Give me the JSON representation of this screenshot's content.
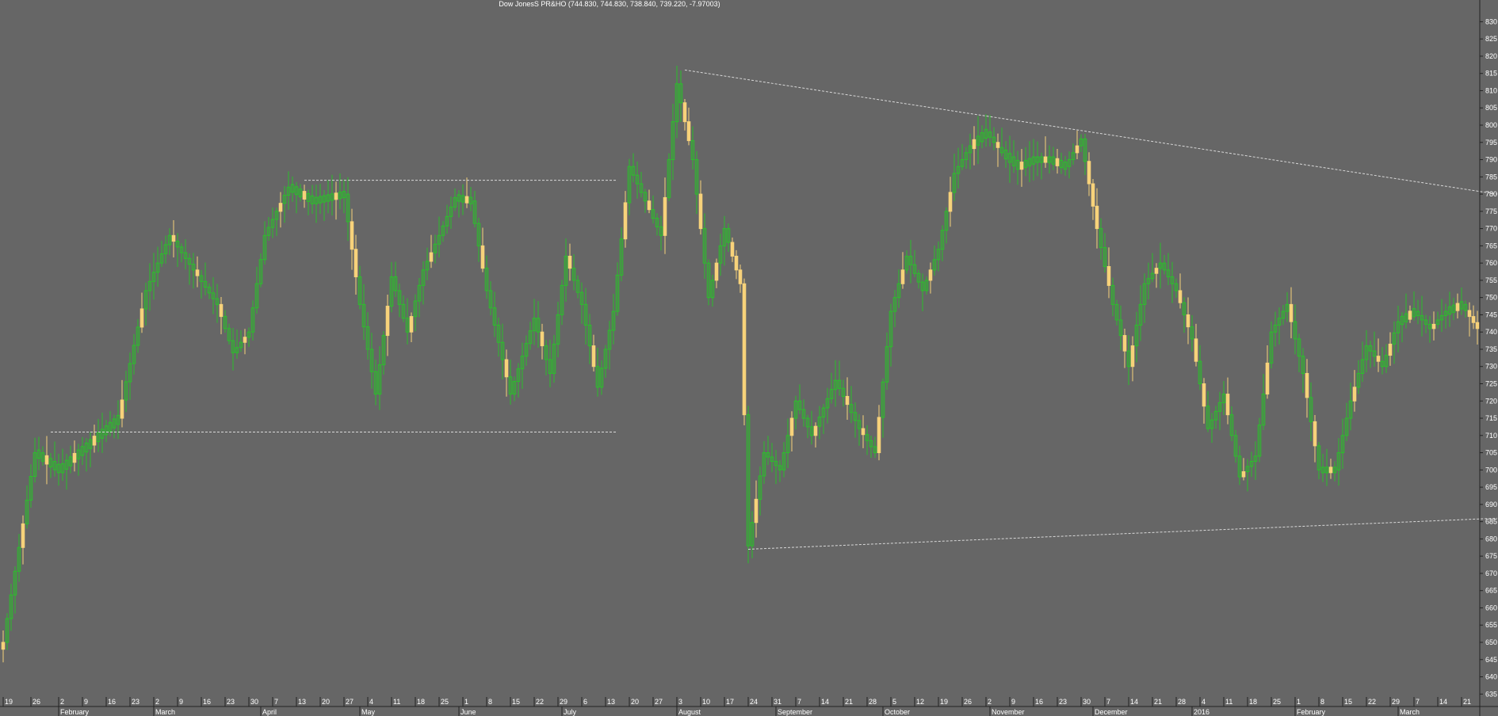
{
  "chart_data": {
    "type": "candlestick",
    "title": "Dow JonesS PR&HO (744.830, 744.830, 738.840, 739.220, -7.97003)",
    "y_axis": {
      "position": "right",
      "ylim": [
        633,
        834
      ],
      "ticks": [
        635,
        640,
        645,
        650,
        655,
        660,
        665,
        670,
        675,
        680,
        685,
        690,
        695,
        700,
        705,
        710,
        715,
        720,
        725,
        730,
        735,
        740,
        745,
        750,
        755,
        760,
        765,
        770,
        775,
        780,
        785,
        790,
        795,
        800,
        805,
        810,
        815,
        820,
        825,
        830
      ]
    },
    "x_axis": {
      "day_ticks": [
        {
          "label": "19",
          "i": 0
        },
        {
          "label": "26",
          "i": 7
        },
        {
          "label": "2",
          "i": 14
        },
        {
          "label": "9",
          "i": 20
        },
        {
          "label": "16",
          "i": 26
        },
        {
          "label": "23",
          "i": 32
        },
        {
          "label": "2",
          "i": 38
        },
        {
          "label": "9",
          "i": 44
        },
        {
          "label": "16",
          "i": 50
        },
        {
          "label": "23",
          "i": 56
        },
        {
          "label": "30",
          "i": 62
        },
        {
          "label": "7",
          "i": 68
        },
        {
          "label": "13",
          "i": 74
        },
        {
          "label": "20",
          "i": 80
        },
        {
          "label": "27",
          "i": 86
        },
        {
          "label": "4",
          "i": 92
        },
        {
          "label": "11",
          "i": 98
        },
        {
          "label": "18",
          "i": 104
        },
        {
          "label": "25",
          "i": 110
        },
        {
          "label": "1",
          "i": 116
        },
        {
          "label": "8",
          "i": 122
        },
        {
          "label": "15",
          "i": 128
        },
        {
          "label": "22",
          "i": 134
        },
        {
          "label": "29",
          "i": 140
        },
        {
          "label": "6",
          "i": 146
        },
        {
          "label": "13",
          "i": 152
        },
        {
          "label": "20",
          "i": 158
        },
        {
          "label": "27",
          "i": 164
        },
        {
          "label": "3",
          "i": 170
        },
        {
          "label": "10",
          "i": 176
        },
        {
          "label": "17",
          "i": 182
        },
        {
          "label": "24",
          "i": 188
        },
        {
          "label": "31",
          "i": 194
        },
        {
          "label": "7",
          "i": 200
        },
        {
          "label": "14",
          "i": 206
        },
        {
          "label": "21",
          "i": 212
        },
        {
          "label": "28",
          "i": 218
        },
        {
          "label": "5",
          "i": 224
        },
        {
          "label": "12",
          "i": 230
        },
        {
          "label": "19",
          "i": 236
        },
        {
          "label": "26",
          "i": 242
        },
        {
          "label": "2",
          "i": 248
        },
        {
          "label": "9",
          "i": 254
        },
        {
          "label": "16",
          "i": 260
        },
        {
          "label": "23",
          "i": 266
        },
        {
          "label": "30",
          "i": 272
        },
        {
          "label": "7",
          "i": 278
        },
        {
          "label": "14",
          "i": 284
        },
        {
          "label": "21",
          "i": 290
        },
        {
          "label": "28",
          "i": 296
        },
        {
          "label": "4",
          "i": 302
        },
        {
          "label": "11",
          "i": 308
        },
        {
          "label": "18",
          "i": 314
        },
        {
          "label": "25",
          "i": 320
        },
        {
          "label": "1",
          "i": 326
        },
        {
          "label": "8",
          "i": 332
        },
        {
          "label": "15",
          "i": 338
        },
        {
          "label": "22",
          "i": 344
        },
        {
          "label": "29",
          "i": 350
        },
        {
          "label": "7",
          "i": 356
        },
        {
          "label": "14",
          "i": 362
        },
        {
          "label": "21",
          "i": 368
        }
      ],
      "month_ticks": [
        {
          "label": "February",
          "i": 14
        },
        {
          "label": "March",
          "i": 38
        },
        {
          "label": "April",
          "i": 65
        },
        {
          "label": "May",
          "i": 90
        },
        {
          "label": "June",
          "i": 115
        },
        {
          "label": "July",
          "i": 141
        },
        {
          "label": "August",
          "i": 170
        },
        {
          "label": "September",
          "i": 195
        },
        {
          "label": "October",
          "i": 222
        },
        {
          "label": "November",
          "i": 249
        },
        {
          "label": "December",
          "i": 275
        },
        {
          "label": "2016",
          "i": 300
        },
        {
          "label": "February",
          "i": 326
        },
        {
          "label": "March",
          "i": 352
        }
      ]
    },
    "series_path": [
      [
        0,
        650
      ],
      [
        8,
        705
      ],
      [
        14,
        700
      ],
      [
        22,
        708
      ],
      [
        29,
        715
      ],
      [
        36,
        752
      ],
      [
        42,
        768
      ],
      [
        48,
        758
      ],
      [
        54,
        748
      ],
      [
        58,
        734
      ],
      [
        62,
        740
      ],
      [
        66,
        768
      ],
      [
        72,
        782
      ],
      [
        78,
        778
      ],
      [
        86,
        780
      ],
      [
        90,
        748
      ],
      [
        94,
        722
      ],
      [
        98,
        756
      ],
      [
        102,
        740
      ],
      [
        106,
        758
      ],
      [
        110,
        768
      ],
      [
        114,
        779
      ],
      [
        118,
        778
      ],
      [
        122,
        752
      ],
      [
        128,
        722
      ],
      [
        134,
        744
      ],
      [
        138,
        728
      ],
      [
        142,
        762
      ],
      [
        146,
        748
      ],
      [
        150,
        724
      ],
      [
        154,
        746
      ],
      [
        158,
        788
      ],
      [
        162,
        778
      ],
      [
        166,
        768
      ],
      [
        170,
        812
      ],
      [
        174,
        790
      ],
      [
        178,
        750
      ],
      [
        182,
        770
      ],
      [
        186,
        754
      ],
      [
        188,
        678
      ],
      [
        192,
        705
      ],
      [
        196,
        700
      ],
      [
        200,
        720
      ],
      [
        204,
        710
      ],
      [
        210,
        726
      ],
      [
        216,
        712
      ],
      [
        220,
        705
      ],
      [
        224,
        746
      ],
      [
        228,
        762
      ],
      [
        232,
        752
      ],
      [
        236,
        764
      ],
      [
        240,
        786
      ],
      [
        244,
        794
      ],
      [
        248,
        798
      ],
      [
        252,
        792
      ],
      [
        256,
        788
      ],
      [
        260,
        790
      ],
      [
        264,
        790
      ],
      [
        268,
        788
      ],
      [
        272,
        796
      ],
      [
        276,
        770
      ],
      [
        280,
        748
      ],
      [
        284,
        730
      ],
      [
        288,
        754
      ],
      [
        292,
        760
      ],
      [
        296,
        752
      ],
      [
        300,
        738
      ],
      [
        304,
        712
      ],
      [
        308,
        722
      ],
      [
        312,
        698
      ],
      [
        316,
        704
      ],
      [
        320,
        740
      ],
      [
        324,
        748
      ],
      [
        328,
        728
      ],
      [
        332,
        700
      ],
      [
        336,
        700
      ],
      [
        340,
        720
      ],
      [
        344,
        736
      ],
      [
        348,
        730
      ],
      [
        352,
        743
      ],
      [
        356,
        746
      ],
      [
        360,
        741
      ],
      [
        364,
        746
      ],
      [
        368,
        748
      ],
      [
        372,
        741
      ]
    ],
    "bearish_days": [
      0,
      5,
      11,
      18,
      23,
      30,
      35,
      43,
      49,
      55,
      61,
      70,
      76,
      84,
      88,
      89,
      97,
      103,
      108,
      117,
      121,
      127,
      136,
      143,
      149,
      157,
      163,
      167,
      172,
      173,
      176,
      180,
      184,
      185,
      186,
      187,
      190,
      199,
      205,
      213,
      217,
      221,
      227,
      234,
      239,
      245,
      251,
      257,
      263,
      266,
      271,
      274,
      275,
      276,
      279,
      283,
      285,
      291,
      297,
      299,
      301,
      303,
      309,
      313,
      319,
      325,
      329,
      331,
      335,
      341,
      347,
      350,
      355,
      361,
      367,
      370,
      371,
      372
    ],
    "trend_lines": [
      {
        "x1": 172,
        "y1": 816,
        "x2": 377,
        "y2": 780
      },
      {
        "x1": 188,
        "y1": 677,
        "x2": 377,
        "y2": 686
      },
      {
        "x1": 76,
        "y1": 784,
        "x2": 155,
        "y2": 784
      },
      {
        "x1": 12,
        "y1": 711,
        "x2": 155,
        "y2": 711
      }
    ],
    "colors": {
      "background": "#666666",
      "bullish": "#2bbf2b",
      "bearish": "#f7d27a",
      "axis_text": "#ffffff",
      "trend_line": "#d8d8d8"
    }
  }
}
